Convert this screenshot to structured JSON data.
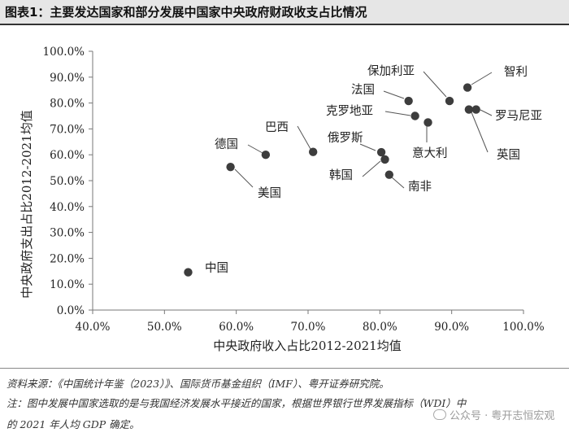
{
  "header": {
    "title": "图表1：主要发达国家和部分发展中国家中央政府财政收支占比情况"
  },
  "chart_data": {
    "type": "scatter",
    "title": "",
    "xlabel": "中央政府收入占比2012-2021均值",
    "ylabel": "中央政府支出占比2012-2021均值",
    "xlim": [
      0.4,
      1.0
    ],
    "ylim": [
      0.0,
      1.0
    ],
    "x_ticks": [
      "40.0%",
      "50.0%",
      "60.0%",
      "70.0%",
      "80.0%",
      "90.0%",
      "100.0%"
    ],
    "y_ticks": [
      "0.0%",
      "10.0%",
      "20.0%",
      "30.0%",
      "40.0%",
      "50.0%",
      "60.0%",
      "70.0%",
      "80.0%",
      "90.0%",
      "100.0%"
    ],
    "grid": false,
    "points": [
      {
        "label": "中国",
        "x": 0.533,
        "y": 0.146
      },
      {
        "label": "美国",
        "x": 0.592,
        "y": 0.553
      },
      {
        "label": "德国",
        "x": 0.641,
        "y": 0.6
      },
      {
        "label": "巴西",
        "x": 0.707,
        "y": 0.611
      },
      {
        "label": "俄罗斯",
        "x": 0.802,
        "y": 0.61
      },
      {
        "label": "韩国",
        "x": 0.807,
        "y": 0.582
      },
      {
        "label": "南非",
        "x": 0.813,
        "y": 0.523
      },
      {
        "label": "法国",
        "x": 0.84,
        "y": 0.808
      },
      {
        "label": "克罗地亚",
        "x": 0.849,
        "y": 0.75
      },
      {
        "label": "意大利",
        "x": 0.867,
        "y": 0.725
      },
      {
        "label": "保加利亚",
        "x": 0.897,
        "y": 0.808
      },
      {
        "label": "智利",
        "x": 0.922,
        "y": 0.86
      },
      {
        "label": "英国",
        "x": 0.924,
        "y": 0.775
      },
      {
        "label": "罗马尼亚",
        "x": 0.934,
        "y": 0.775
      }
    ]
  },
  "footer": {
    "source": "资料来源：《中国统计年鉴（2023）》、国际货币基金组织（IMF）、粤开证券研究院。",
    "note_line1": "注：图中发展中国家选取的是与我国经济发展水平接近的国家，根据世界银行世界发展指标（WDI）中",
    "note_line2": "的 2021 年人均 GDP 确定。",
    "watermark": "公众号 · 粤开志恒宏观"
  }
}
